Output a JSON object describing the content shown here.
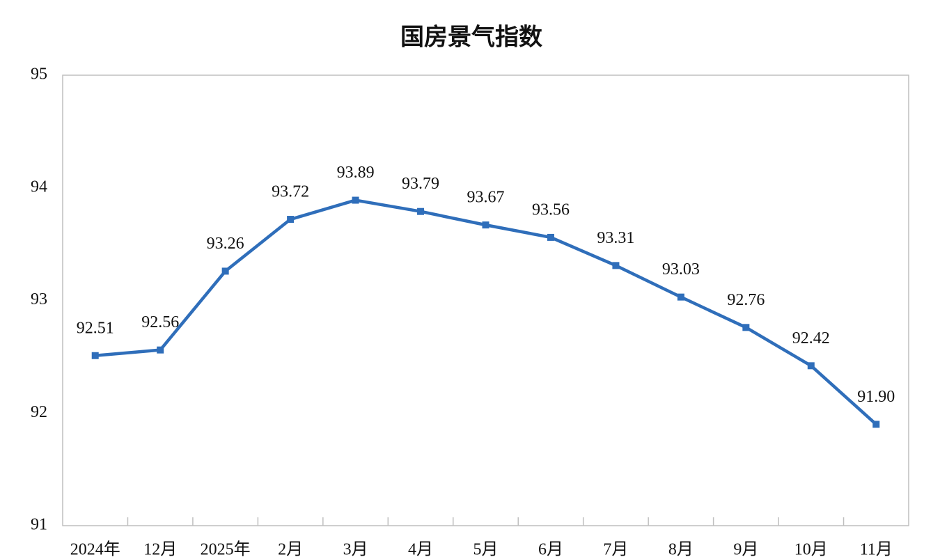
{
  "chart_data": {
    "type": "line",
    "title": "国房景气指数",
    "categories": [
      "2024年",
      "12月",
      "2025年",
      "2月",
      "3月",
      "4月",
      "5月",
      "6月",
      "7月",
      "8月",
      "9月",
      "10月",
      "11月"
    ],
    "series": [
      {
        "name": "国房景气指数",
        "color": "#2f6eba",
        "values": [
          92.51,
          92.56,
          93.26,
          93.72,
          93.89,
          93.79,
          93.67,
          93.56,
          93.31,
          93.03,
          92.76,
          92.42,
          91.9
        ],
        "value_labels": [
          "92.51",
          "92.56",
          "93.26",
          "93.72",
          "93.89",
          "93.79",
          "93.67",
          "93.56",
          "93.31",
          "93.03",
          "92.76",
          "92.42",
          "91.90"
        ]
      }
    ],
    "ylim": [
      91,
      95
    ],
    "yticks": [
      91,
      92,
      93,
      94,
      95
    ],
    "grid": false
  }
}
